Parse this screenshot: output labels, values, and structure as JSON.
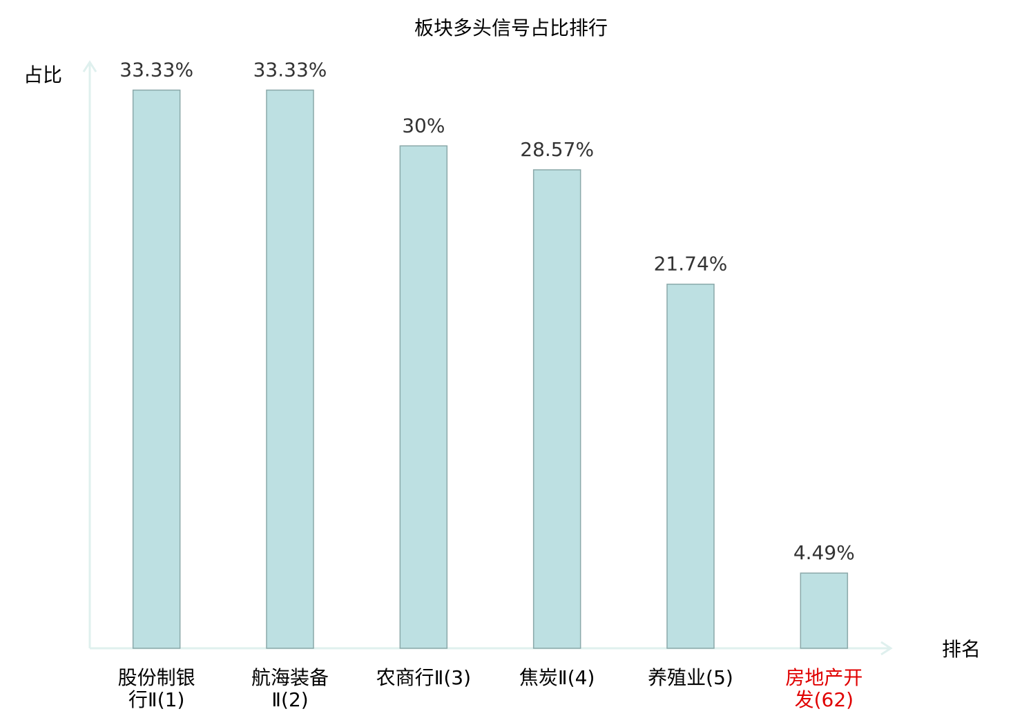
{
  "chart_data": {
    "type": "bar",
    "title": "板块多头信号占比排行",
    "y_label": "占比",
    "x_label": "排名",
    "categories": [
      "股份制银\n行Ⅱ(1)",
      "航海装备\nⅡ(2)",
      "农商行Ⅱ(3)",
      "焦炭Ⅱ(4)",
      "养殖业(5)",
      "房地产开\n发(62)"
    ],
    "values": [
      33.33,
      33.33,
      30,
      28.57,
      21.74,
      4.49
    ],
    "value_labels": [
      "33.33%",
      "33.33%",
      "30%",
      "28.57%",
      "21.74%",
      "4.49%"
    ],
    "label_colors": [
      "#000000",
      "#000000",
      "#000000",
      "#000000",
      "#000000",
      "#e00000"
    ],
    "color": "#bde0e2",
    "edge_color": "#8aa8a9",
    "axis_color": "#dff0ee",
    "ylim": [
      0,
      35
    ]
  }
}
